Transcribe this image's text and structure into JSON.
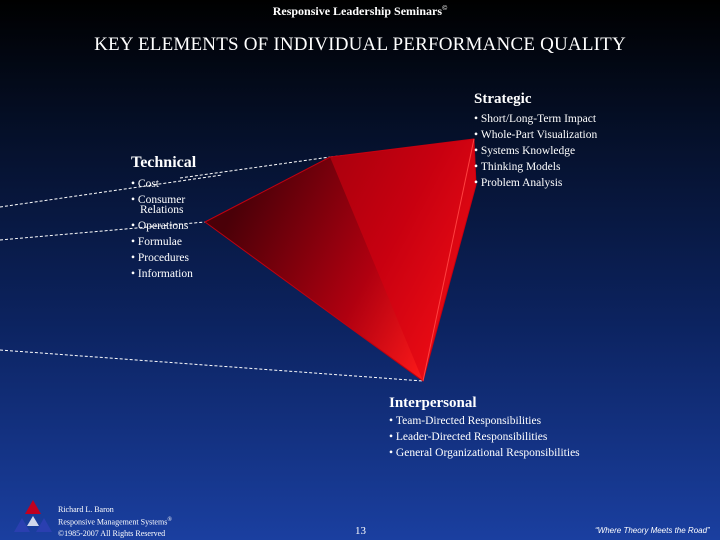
{
  "header": {
    "brand": "Responsive Leadership Seminars",
    "brand_mark": "©",
    "title": "KEY ELEMENTS OF INDIVIDUAL PERFORMANCE QUALITY"
  },
  "strategic": {
    "heading": "Strategic",
    "items": [
      "Short/Long-Term Impact",
      "Whole-Part Visualization",
      "Systems Knowledge",
      "Thinking Models",
      "Problem Analysis"
    ]
  },
  "technical": {
    "heading": "Technical",
    "items": [
      "Cost",
      "Consumer",
      "Relations",
      "Operations",
      "Formulae",
      "Procedures",
      "Information"
    ]
  },
  "interpersonal": {
    "heading": "Interpersonal",
    "items": [
      "Team-Directed Responsibilities",
      "Leader-Directed Responsibilities",
      "General Organizational Responsibilities"
    ]
  },
  "footer": {
    "author": "Richard L. Baron",
    "company": "Responsive Management Systems",
    "company_mark": "®",
    "copyright": "©1985-2007 All Rights Reserved",
    "page": "13",
    "tagline": "“Where Theory Meets the Road”"
  },
  "colors": {
    "triangle_dark": "#4a0008",
    "triangle_light": "#ff1a1a",
    "background_top": "#000000",
    "background_bottom": "#1a3fa0"
  },
  "icons": {
    "logo": "triangle-logo-icon"
  }
}
